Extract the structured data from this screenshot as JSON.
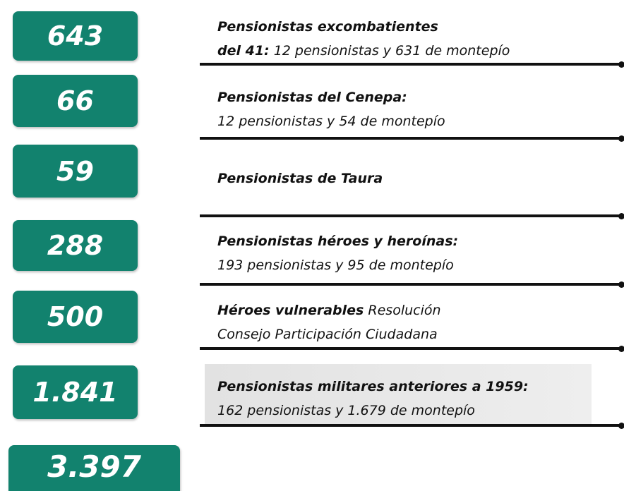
{
  "items": [
    {
      "number": "643",
      "lines": [
        [
          {
            "text": "Pensionistas excombatientes",
            "bold": true
          }
        ],
        [
          {
            "text": "del 41:",
            "bold": true
          },
          {
            "text": " 12 pensionistas y 631 de montepío",
            "bold": false
          }
        ]
      ]
    },
    {
      "number": "66",
      "lines": [
        [
          {
            "text": "Pensionistas del Cenepa:",
            "bold": true
          }
        ],
        [
          {
            "text": "12 pensionistas y 54 de montepío",
            "bold": false
          }
        ]
      ]
    },
    {
      "number": "59",
      "lines": [
        [
          {
            "text": "Pensionistas de Taura",
            "bold": true
          }
        ]
      ]
    },
    {
      "number": "288",
      "lines": [
        [
          {
            "text": "Pensionistas héroes y heroínas:",
            "bold": true
          }
        ],
        [
          {
            "text": "193 pensionistas y 95 de montepío",
            "bold": false
          }
        ]
      ]
    },
    {
      "number": "500",
      "lines": [
        [
          {
            "text": "Héroes vulnerables",
            "bold": true
          },
          {
            "text": " Resolución",
            "bold": false
          }
        ],
        [
          {
            "text": "Consejo Participación Ciudadana",
            "bold": false
          }
        ]
      ]
    },
    {
      "number": "1.841",
      "lines": [
        [
          {
            "text": "Pensionistas militares anteriores a 1959:",
            "bold": true
          }
        ],
        [
          {
            "text": "162 pensionistas y 1.679 de montepío",
            "bold": false
          }
        ]
      ]
    }
  ],
  "total": "3.397"
}
